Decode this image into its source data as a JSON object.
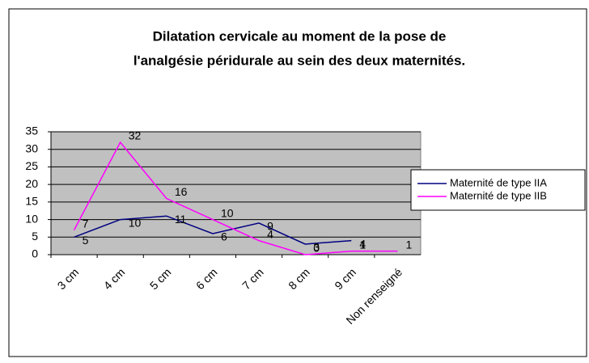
{
  "chart_data": {
    "type": "line",
    "title": [
      "Dilatation cervicale au moment de la pose de",
      "l'analgésie péridurale au sein des deux maternités."
    ],
    "categories": [
      "3 cm",
      "4 cm",
      "5 cm",
      "6 cm",
      "7 cm",
      "8 cm",
      "9 cm",
      "Non renseigné"
    ],
    "series": [
      {
        "name": "Maternité de type IIA",
        "color": "#000080",
        "values": [
          5,
          10,
          11,
          6,
          9,
          3,
          4,
          null
        ]
      },
      {
        "name": "Maternité de type IIB",
        "color": "#ff00ff",
        "values": [
          7,
          32,
          16,
          10,
          4,
          0,
          1,
          1
        ]
      }
    ],
    "ylim": [
      0,
      35
    ],
    "yticks": [
      0,
      5,
      10,
      15,
      20,
      25,
      30,
      35
    ],
    "grid": true,
    "legend": "right"
  }
}
